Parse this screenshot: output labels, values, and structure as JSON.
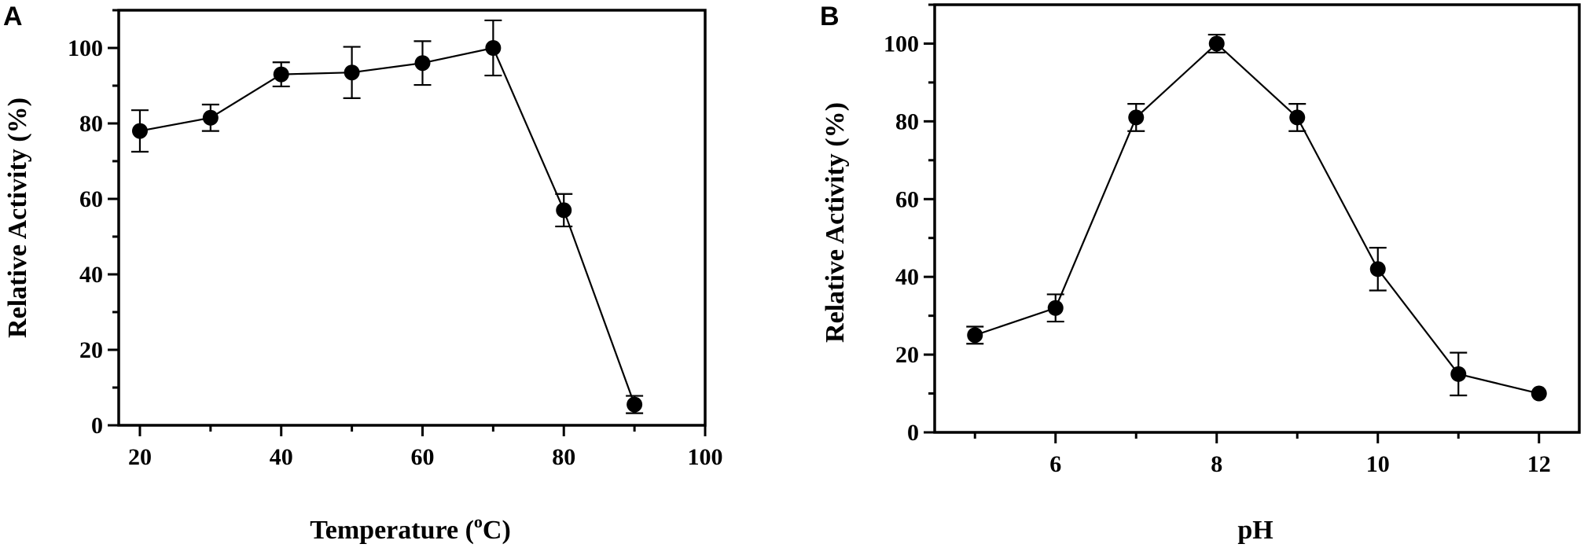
{
  "chart_data": [
    {
      "panel_label": "A",
      "type": "line",
      "xlabel": "Temperature (",
      "xlabel_sup": "o",
      "xlabel_after": "C)",
      "ylabel": "Relative Activity (%)",
      "xlim": [
        17,
        100
      ],
      "ylim": [
        0,
        110
      ],
      "xticks": [
        20,
        40,
        60,
        80,
        100
      ],
      "yticks": [
        0,
        20,
        40,
        60,
        80,
        100
      ],
      "minor_x_step": 10,
      "minor_y_step": 10,
      "series": [
        {
          "x": [
            20,
            30,
            40,
            50,
            60,
            70,
            80,
            90
          ],
          "y": [
            78,
            81.5,
            93,
            93.5,
            96,
            100,
            57,
            5.5
          ],
          "err": [
            5.5,
            3.5,
            3.2,
            6.8,
            5.8,
            7.3,
            4.3,
            2.3
          ]
        }
      ]
    },
    {
      "panel_label": "B",
      "type": "line",
      "xlabel": "pH",
      "ylabel": "Relative Activity (%)",
      "xlim": [
        4.5,
        12.5
      ],
      "ylim": [
        0,
        110
      ],
      "xticks": [
        6,
        8,
        10,
        12
      ],
      "yticks": [
        0,
        20,
        40,
        60,
        80,
        100
      ],
      "minor_x_step": 1,
      "minor_y_step": 10,
      "series": [
        {
          "x": [
            5,
            6,
            7,
            8,
            9,
            10,
            11,
            12
          ],
          "y": [
            25,
            32,
            81,
            100,
            81,
            42,
            15,
            10
          ],
          "err": [
            2.2,
            3.5,
            3.5,
            2.3,
            3.5,
            5.5,
            5.5,
            0
          ]
        }
      ]
    }
  ]
}
